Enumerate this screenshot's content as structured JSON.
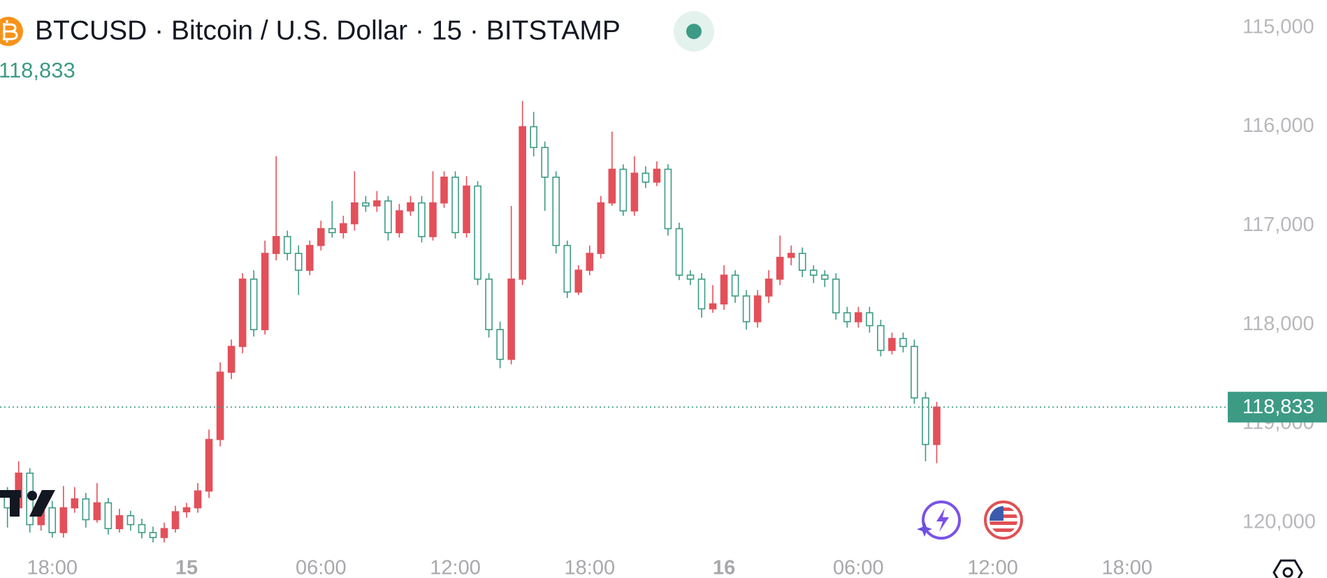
{
  "chart_data": {
    "type": "candlestick",
    "title": "BTCUSD · Bitcoin / U.S. Dollar · 15 · BITSTAMP",
    "last_price": {
      "value": 118833,
      "label": "118,833"
    },
    "up_color": "#3d9b85",
    "down_color": "#e3505a",
    "inverted_scale": true,
    "grid": false,
    "ylim": [
      114720,
      120270
    ],
    "yticks": [
      {
        "value": 115000,
        "label": "115,000"
      },
      {
        "value": 116000,
        "label": "116,000"
      },
      {
        "value": 117000,
        "label": "117,000"
      },
      {
        "value": 118000,
        "label": "118,000"
      },
      {
        "value": 119000,
        "label": "119,000"
      },
      {
        "value": 120000,
        "label": "120,000"
      }
    ],
    "xlim": [
      "14 15:40",
      "16 22:28"
    ],
    "xticks": [
      {
        "value": "14 18:00",
        "label": "18:00"
      },
      {
        "value": "15 00:00",
        "label": "15"
      },
      {
        "value": "15 06:00",
        "label": "06:00"
      },
      {
        "value": "15 12:00",
        "label": "12:00"
      },
      {
        "value": "15 18:00",
        "label": "18:00"
      },
      {
        "value": "16 00:00",
        "label": "16"
      },
      {
        "value": "16 06:00",
        "label": "06:00"
      },
      {
        "value": "16 12:00",
        "label": "12:00"
      },
      {
        "value": "16 18:00",
        "label": "18:00"
      }
    ],
    "x": [
      "14 16:00",
      "14 16:30",
      "14 17:00",
      "14 17:30",
      "14 18:00",
      "14 18:30",
      "14 19:00",
      "14 19:30",
      "14 20:00",
      "14 20:30",
      "14 21:00",
      "14 21:30",
      "14 22:00",
      "14 22:30",
      "14 23:00",
      "14 23:30",
      "15 00:00",
      "15 00:30",
      "15 01:00",
      "15 01:30",
      "15 02:00",
      "15 02:30",
      "15 03:00",
      "15 03:30",
      "15 04:00",
      "15 04:30",
      "15 05:00",
      "15 05:30",
      "15 06:00",
      "15 06:30",
      "15 07:00",
      "15 07:30",
      "15 08:00",
      "15 08:30",
      "15 09:00",
      "15 09:30",
      "15 10:00",
      "15 10:30",
      "15 11:00",
      "15 11:30",
      "15 12:00",
      "15 12:30",
      "15 13:00",
      "15 13:30",
      "15 14:00",
      "15 14:30",
      "15 15:00",
      "15 15:30",
      "15 16:00",
      "15 16:30",
      "15 17:00",
      "15 17:30",
      "15 18:00",
      "15 18:30",
      "15 19:00",
      "15 19:30",
      "15 20:00",
      "15 20:30",
      "15 21:00",
      "15 21:30",
      "15 22:00",
      "15 22:30",
      "15 23:00",
      "15 23:30",
      "16 00:00",
      "16 00:30",
      "16 01:00",
      "16 01:30",
      "16 02:00",
      "16 02:30",
      "16 03:00",
      "16 03:30",
      "16 04:00",
      "16 04:30",
      "16 05:00",
      "16 05:30",
      "16 06:00",
      "16 06:30",
      "16 07:00",
      "16 07:30",
      "16 08:00",
      "16 08:30",
      "16 09:00",
      "16 09:30"
    ],
    "open": [
      119700,
      119850,
      119500,
      120020,
      119850,
      120100,
      119850,
      119760,
      119970,
      119800,
      120060,
      119930,
      120020,
      120100,
      120150,
      120060,
      119890,
      119850,
      119680,
      119160,
      118480,
      118220,
      117540,
      118050,
      117280,
      117110,
      117280,
      117450,
      117200,
      117030,
      117070,
      116980,
      116770,
      116800,
      116750,
      117070,
      116850,
      116770,
      117110,
      116770,
      116510,
      117070,
      116600,
      117540,
      118050,
      118350,
      117540,
      116000,
      116210,
      116510,
      117200,
      117670,
      117450,
      117280,
      116770,
      116430,
      116850,
      116470,
      116560,
      116430,
      117030,
      117500,
      117540,
      117840,
      117790,
      117500,
      117710,
      117970,
      117710,
      117540,
      117320,
      117280,
      117450,
      117500,
      117540,
      117880,
      117970,
      117880,
      118010,
      118260,
      118140,
      118220,
      118740,
      119210
    ],
    "high": [
      120050,
      119900,
      120100,
      120080,
      120150,
      120150,
      119900,
      120050,
      120000,
      120120,
      120100,
      120080,
      120160,
      120200,
      120200,
      120100,
      119950,
      119900,
      119750,
      119230,
      118550,
      118290,
      118120,
      118100,
      117350,
      117350,
      117700,
      117500,
      117250,
      117120,
      117130,
      117050,
      116860,
      116860,
      117150,
      117120,
      116900,
      117170,
      117150,
      116820,
      117130,
      117120,
      117600,
      118130,
      118440,
      118400,
      117600,
      116300,
      116850,
      117280,
      117730,
      117700,
      117500,
      117330,
      116800,
      116900,
      116900,
      116620,
      116600,
      117100,
      117550,
      117600,
      117930,
      117880,
      117850,
      117780,
      118050,
      118030,
      117780,
      117600,
      117400,
      117520,
      117580,
      117620,
      117950,
      118030,
      118030,
      118080,
      118320,
      118300,
      118280,
      118800,
      119380,
      119400
    ],
    "low": [
      119640,
      119380,
      119450,
      119800,
      119780,
      119630,
      119640,
      119700,
      119600,
      119750,
      119860,
      119880,
      119960,
      120040,
      120000,
      119830,
      119800,
      119600,
      119060,
      118380,
      118150,
      117480,
      117450,
      117150,
      116300,
      117050,
      117200,
      117150,
      116950,
      116750,
      116900,
      116450,
      116700,
      116650,
      116700,
      116780,
      116700,
      116700,
      116450,
      116450,
      116450,
      116500,
      116550,
      117480,
      117970,
      116800,
      115740,
      115850,
      116150,
      116450,
      117150,
      117400,
      117200,
      116700,
      116050,
      116380,
      116300,
      116400,
      116350,
      116380,
      116970,
      117450,
      117480,
      117600,
      117400,
      117450,
      117650,
      117650,
      117450,
      117100,
      117200,
      117220,
      117400,
      117450,
      117480,
      117820,
      117820,
      117820,
      117950,
      118080,
      118080,
      118150,
      118680,
      118780
    ],
    "close": [
      119850,
      119500,
      120020,
      119850,
      120100,
      119850,
      119760,
      119970,
      119800,
      120060,
      119930,
      120020,
      120100,
      120150,
      120060,
      119890,
      119850,
      119680,
      119160,
      118480,
      118220,
      117540,
      118050,
      117280,
      117110,
      117280,
      117450,
      117200,
      117030,
      117070,
      116980,
      116770,
      116800,
      116750,
      117070,
      116850,
      116770,
      117110,
      116770,
      116510,
      117070,
      116600,
      117540,
      118050,
      118350,
      117540,
      116000,
      116210,
      116510,
      117200,
      117670,
      117450,
      117280,
      116770,
      116430,
      116850,
      116470,
      116560,
      116430,
      117030,
      117500,
      117540,
      117840,
      117790,
      117500,
      117710,
      117970,
      117710,
      117540,
      117320,
      117280,
      117450,
      117500,
      117540,
      117880,
      117970,
      117880,
      118010,
      118260,
      118140,
      118220,
      118740,
      119210,
      118833
    ]
  }
}
